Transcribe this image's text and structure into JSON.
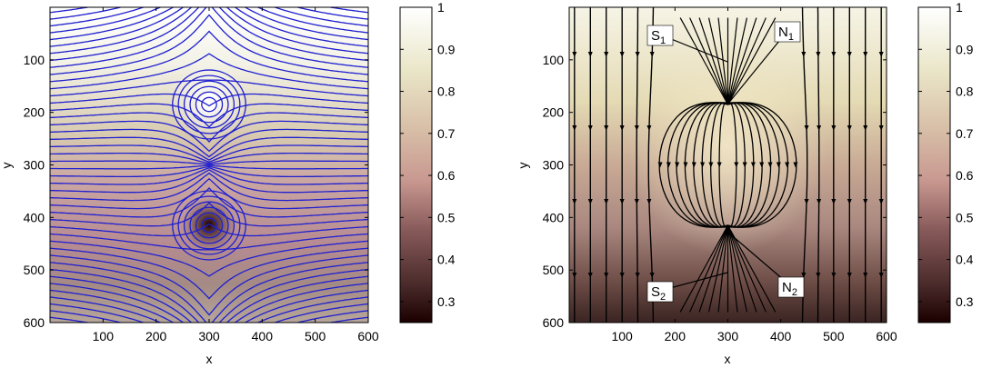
{
  "chart_data": [
    {
      "type": "heatmap",
      "title": "",
      "xlabel": "x",
      "ylabel": "y",
      "xlim": [
        0,
        600
      ],
      "ylim": [
        0,
        600
      ],
      "y_reversed": true,
      "xticks": [
        100,
        200,
        300,
        400,
        500,
        600
      ],
      "yticks": [
        100,
        200,
        300,
        400,
        500,
        600
      ],
      "colorbar": {
        "min": 0.25,
        "max": 1,
        "ticks": [
          0.3,
          0.4,
          0.5,
          0.6,
          0.7,
          0.8,
          0.9,
          1
        ],
        "tick_labels": [
          "0.3",
          "0.4",
          "0.5",
          "0.6",
          "0.7",
          "0.8",
          "0.9",
          "1"
        ]
      },
      "overlay": "level lines",
      "line_color": "#1f1fd0",
      "features": [
        {
          "kind": "bright maximum",
          "x": 300,
          "y": 185
        },
        {
          "kind": "dark minimum",
          "x": 300,
          "y": 415
        }
      ]
    },
    {
      "type": "heatmap",
      "title": "",
      "xlabel": "x",
      "ylabel": "y",
      "xlim": [
        0,
        600
      ],
      "ylim": [
        0,
        600
      ],
      "y_reversed": true,
      "xticks": [
        100,
        200,
        300,
        400,
        500,
        600
      ],
      "yticks": [
        100,
        200,
        300,
        400,
        500,
        600
      ],
      "colorbar": {
        "min": 0.25,
        "max": 1,
        "ticks": [
          0.3,
          0.4,
          0.5,
          0.6,
          0.7,
          0.8,
          0.9,
          1
        ],
        "tick_labels": [
          "0.3",
          "0.4",
          "0.5",
          "0.6",
          "0.7",
          "0.8",
          "0.9",
          "1"
        ]
      },
      "overlay": "streamlines with arrows",
      "line_color": "#000000",
      "annotations": [
        {
          "main": "S",
          "sub": "1",
          "x": 300,
          "y": 100
        },
        {
          "main": "N",
          "sub": "1",
          "x": 300,
          "y": 185
        },
        {
          "main": "S",
          "sub": "2",
          "x": 300,
          "y": 500
        },
        {
          "main": "N",
          "sub": "2",
          "x": 300,
          "y": 415
        }
      ]
    }
  ]
}
